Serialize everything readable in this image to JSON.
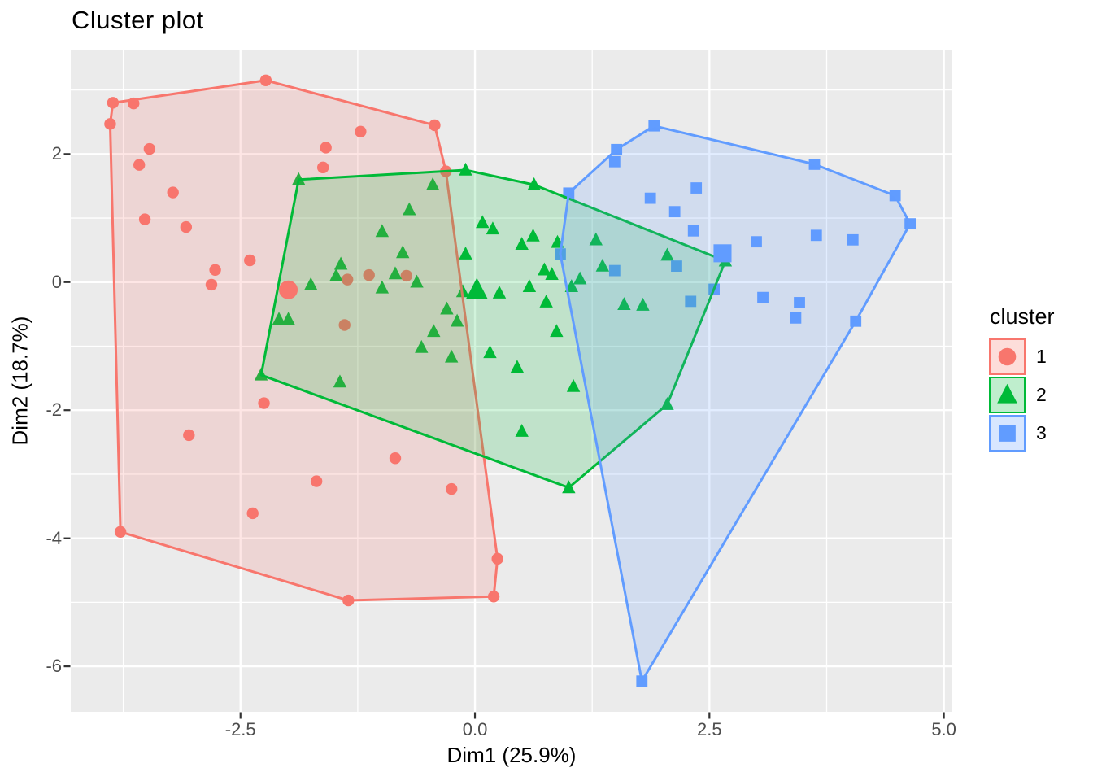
{
  "title": "Cluster plot",
  "chart_data": {
    "type": "scatter",
    "title": "Cluster plot",
    "xlabel": "Dim1 (25.9%)",
    "ylabel": "Dim2 (18.7%)",
    "legend_title": "cluster",
    "legend_position": "right",
    "xlim": [
      -4.31,
      5.09
    ],
    "ylim": [
      -6.71,
      3.63
    ],
    "x_ticks": {
      "values": [
        -2.5,
        0,
        2.5,
        5
      ],
      "labels": [
        "-2.5",
        "0.0",
        "2.5",
        "5.0"
      ],
      "minor": [
        -3.75,
        -1.25,
        1.25,
        3.75
      ]
    },
    "y_ticks": {
      "values": [
        2,
        0,
        -2,
        -4,
        -6
      ],
      "labels": [
        "2",
        "0",
        "-2",
        "-4",
        "-6"
      ],
      "minor": [
        3,
        1,
        -1,
        -3,
        -5
      ]
    },
    "grid": true,
    "colors": {
      "panel_bg": "#EBEBEB",
      "grid": "#FFFFFF",
      "tick_mark": "#333333",
      "tick_text": "#4D4D4D",
      "text": "#000000"
    },
    "series": [
      {
        "name": "1",
        "marker": "circle",
        "color": "#F8766D",
        "fill_alpha": 0.18,
        "centroid": [
          -1.99,
          -0.12
        ],
        "hull": [
          [
            -2.23,
            3.15
          ],
          [
            -0.43,
            2.45
          ],
          [
            -0.31,
            1.73
          ],
          [
            0.24,
            -4.32
          ],
          [
            0.2,
            -4.91
          ],
          [
            -1.35,
            -4.97
          ],
          [
            -3.78,
            -3.9
          ],
          [
            -3.89,
            2.47
          ],
          [
            -3.86,
            2.8
          ]
        ],
        "points": [
          [
            -3.86,
            2.8
          ],
          [
            -3.64,
            2.79
          ],
          [
            -3.89,
            2.47
          ],
          [
            -2.23,
            3.15
          ],
          [
            -1.22,
            2.35
          ],
          [
            -0.43,
            2.45
          ],
          [
            -3.47,
            2.08
          ],
          [
            -1.59,
            2.1
          ],
          [
            -3.58,
            1.83
          ],
          [
            -1.62,
            1.79
          ],
          [
            -0.31,
            1.73
          ],
          [
            -3.22,
            1.4
          ],
          [
            -3.52,
            0.98
          ],
          [
            -3.08,
            0.86
          ],
          [
            -2.4,
            0.34
          ],
          [
            -2.77,
            0.19
          ],
          [
            -2.81,
            -0.04
          ],
          [
            -1.36,
            0.04
          ],
          [
            -1.13,
            0.11
          ],
          [
            -0.73,
            0.1
          ],
          [
            -1.39,
            -0.67
          ],
          [
            -2.25,
            -1.89
          ],
          [
            -3.05,
            -2.39
          ],
          [
            -0.85,
            -2.75
          ],
          [
            -1.69,
            -3.11
          ],
          [
            -0.25,
            -3.23
          ],
          [
            -2.37,
            -3.61
          ],
          [
            -3.78,
            -3.9
          ],
          [
            0.24,
            -4.32
          ],
          [
            0.2,
            -4.91
          ],
          [
            -1.35,
            -4.97
          ]
        ]
      },
      {
        "name": "2",
        "marker": "triangle",
        "color": "#00BA38",
        "fill_alpha": 0.18,
        "centroid": [
          0.02,
          -0.12
        ],
        "hull": [
          [
            -1.88,
            1.6
          ],
          [
            -0.1,
            1.75
          ],
          [
            0.63,
            1.52
          ],
          [
            2.67,
            0.33
          ],
          [
            2.05,
            -1.91
          ],
          [
            1.0,
            -3.21
          ],
          [
            -2.28,
            -1.45
          ]
        ],
        "points": [
          [
            -1.88,
            1.6
          ],
          [
            -0.1,
            1.75
          ],
          [
            0.63,
            1.52
          ],
          [
            -0.45,
            1.52
          ],
          [
            -0.7,
            1.13
          ],
          [
            -0.99,
            0.79
          ],
          [
            0.08,
            0.93
          ],
          [
            0.19,
            0.83
          ],
          [
            0.62,
            0.72
          ],
          [
            0.5,
            0.59
          ],
          [
            0.88,
            0.62
          ],
          [
            1.29,
            0.66
          ],
          [
            -0.77,
            0.46
          ],
          [
            -0.1,
            0.44
          ],
          [
            -1.43,
            0.28
          ],
          [
            -1.48,
            0.1
          ],
          [
            -1.75,
            -0.04
          ],
          [
            -0.85,
            0.13
          ],
          [
            -0.62,
            0.0
          ],
          [
            -0.99,
            -0.09
          ],
          [
            0.74,
            0.19
          ],
          [
            0.82,
            0.12
          ],
          [
            1.36,
            0.25
          ],
          [
            2.05,
            0.42
          ],
          [
            2.67,
            0.33
          ],
          [
            -0.13,
            -0.15
          ],
          [
            0.26,
            -0.17
          ],
          [
            0.58,
            -0.07
          ],
          [
            1.03,
            -0.07
          ],
          [
            1.12,
            0.05
          ],
          [
            -2.09,
            -0.58
          ],
          [
            -1.99,
            -0.58
          ],
          [
            -0.3,
            -0.42
          ],
          [
            -0.19,
            -0.61
          ],
          [
            0.76,
            -0.31
          ],
          [
            1.59,
            -0.35
          ],
          [
            1.79,
            -0.36
          ],
          [
            0.87,
            -0.77
          ],
          [
            -0.44,
            -0.77
          ],
          [
            -0.57,
            -1.02
          ],
          [
            -0.25,
            -1.17
          ],
          [
            0.16,
            -1.1
          ],
          [
            0.45,
            -1.33
          ],
          [
            -1.44,
            -1.56
          ],
          [
            -2.28,
            -1.45
          ],
          [
            1.05,
            -1.63
          ],
          [
            2.05,
            -1.91
          ],
          [
            0.5,
            -2.33
          ],
          [
            1.0,
            -3.21
          ]
        ]
      },
      {
        "name": "3",
        "marker": "square",
        "color": "#619CFF",
        "fill_alpha": 0.18,
        "centroid": [
          2.64,
          0.45
        ],
        "hull": [
          [
            0.91,
            0.44
          ],
          [
            1.0,
            1.39
          ],
          [
            1.51,
            2.07
          ],
          [
            1.91,
            2.44
          ],
          [
            3.62,
            1.84
          ],
          [
            4.48,
            1.35
          ],
          [
            4.64,
            0.91
          ],
          [
            4.06,
            -0.61
          ],
          [
            1.78,
            -6.23
          ]
        ],
        "points": [
          [
            1.91,
            2.44
          ],
          [
            1.51,
            2.07
          ],
          [
            1.49,
            1.88
          ],
          [
            3.62,
            1.84
          ],
          [
            2.36,
            1.47
          ],
          [
            1.87,
            1.31
          ],
          [
            4.48,
            1.35
          ],
          [
            2.13,
            1.1
          ],
          [
            4.64,
            0.91
          ],
          [
            2.33,
            0.8
          ],
          [
            3.64,
            0.73
          ],
          [
            3.0,
            0.63
          ],
          [
            4.03,
            0.66
          ],
          [
            1.0,
            1.39
          ],
          [
            0.91,
            0.44
          ],
          [
            1.49,
            0.18
          ],
          [
            2.15,
            0.25
          ],
          [
            2.55,
            -0.11
          ],
          [
            2.3,
            -0.3
          ],
          [
            3.07,
            -0.24
          ],
          [
            3.46,
            -0.32
          ],
          [
            3.42,
            -0.56
          ],
          [
            4.06,
            -0.61
          ],
          [
            1.78,
            -6.23
          ]
        ]
      }
    ]
  }
}
